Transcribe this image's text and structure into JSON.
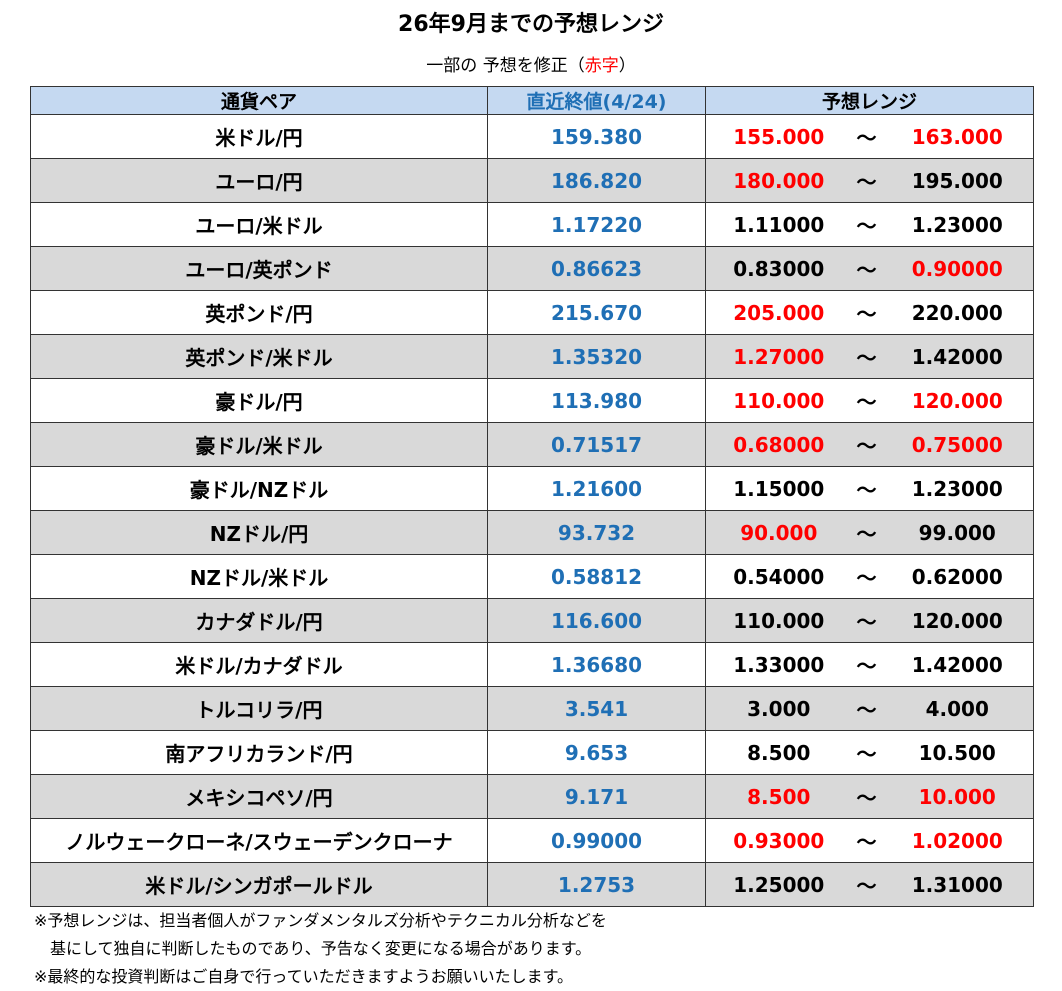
{
  "header": {
    "title": "26年9月までの予想レンジ",
    "subtitle": {
      "before": "一部の 予想を修正（",
      "highlight": "赤字",
      "after": "）"
    }
  },
  "colors": {
    "header_bg": "#c5d9f1",
    "alt_row_bg": "#d9d9d9",
    "last": "#1f6fb5",
    "revised": "#ff0000",
    "normal": "#000000"
  },
  "table": {
    "columns": [
      "通貨ペア",
      "直近終値(4/24)",
      "予想レンジ"
    ],
    "separator": "～",
    "rows": [
      {
        "pair": "米ドル/円",
        "last": "159.380",
        "low": "155.000",
        "high": "163.000",
        "low_revised": true,
        "high_revised": true
      },
      {
        "pair": "ユーロ/円",
        "last": "186.820",
        "low": "180.000",
        "high": "195.000",
        "low_revised": true,
        "high_revised": false
      },
      {
        "pair": "ユーロ/米ドル",
        "last": "1.17220",
        "low": "1.11000",
        "high": "1.23000",
        "low_revised": false,
        "high_revised": false
      },
      {
        "pair": "ユーロ/英ポンド",
        "last": "0.86623",
        "low": "0.83000",
        "high": "0.90000",
        "low_revised": false,
        "high_revised": true
      },
      {
        "pair": "英ポンド/円",
        "last": "215.670",
        "low": "205.000",
        "high": "220.000",
        "low_revised": true,
        "high_revised": false
      },
      {
        "pair": "英ポンド/米ドル",
        "last": "1.35320",
        "low": "1.27000",
        "high": "1.42000",
        "low_revised": true,
        "high_revised": false
      },
      {
        "pair": "豪ドル/円",
        "last": "113.980",
        "low": "110.000",
        "high": "120.000",
        "low_revised": true,
        "high_revised": true
      },
      {
        "pair": "豪ドル/米ドル",
        "last": "0.71517",
        "low": "0.68000",
        "high": "0.75000",
        "low_revised": true,
        "high_revised": true
      },
      {
        "pair": "豪ドル/NZドル",
        "last": "1.21600",
        "low": "1.15000",
        "high": "1.23000",
        "low_revised": false,
        "high_revised": false
      },
      {
        "pair": "NZドル/円",
        "last": "93.732",
        "low": "90.000",
        "high": "99.000",
        "low_revised": true,
        "high_revised": false
      },
      {
        "pair": "NZドル/米ドル",
        "last": "0.58812",
        "low": "0.54000",
        "high": "0.62000",
        "low_revised": false,
        "high_revised": false
      },
      {
        "pair": "カナダドル/円",
        "last": "116.600",
        "low": "110.000",
        "high": "120.000",
        "low_revised": false,
        "high_revised": false
      },
      {
        "pair": "米ドル/カナダドル",
        "last": "1.36680",
        "low": "1.33000",
        "high": "1.42000",
        "low_revised": false,
        "high_revised": false
      },
      {
        "pair": "トルコリラ/円",
        "last": "3.541",
        "low": "3.000",
        "high": "4.000",
        "low_revised": false,
        "high_revised": false
      },
      {
        "pair": "南アフリカランド/円",
        "last": "9.653",
        "low": "8.500",
        "high": "10.500",
        "low_revised": false,
        "high_revised": false
      },
      {
        "pair": "メキシコペソ/円",
        "last": "9.171",
        "low": "8.500",
        "high": "10.000",
        "low_revised": true,
        "high_revised": true
      },
      {
        "pair": "ノルウェークローネ/スウェーデンクローナ",
        "last": "0.99000",
        "low": "0.93000",
        "high": "1.02000",
        "low_revised": true,
        "high_revised": true
      },
      {
        "pair": "米ドル/シンガポールドル",
        "last": "1.2753",
        "low": "1.25000",
        "high": "1.31000",
        "low_revised": false,
        "high_revised": false
      }
    ]
  },
  "footnotes": [
    "※予想レンジは、担当者個人がファンダメンタルズ分析やテクニカル分析などを",
    "基にして独自に判断したものであり、予告なく変更になる場合があります。",
    "※最終的な投資判断はご自身で行っていただきますようお願いいたします。"
  ]
}
